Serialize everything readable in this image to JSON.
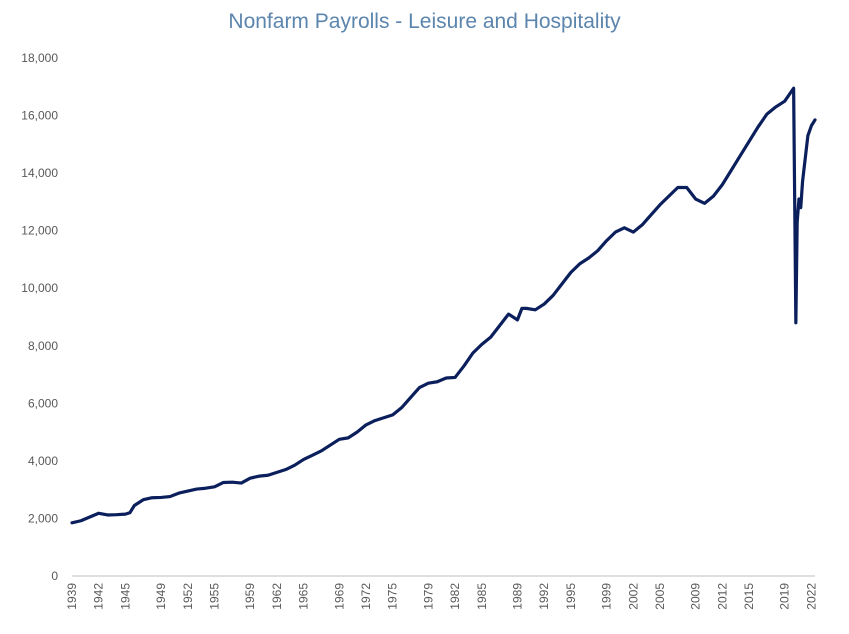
{
  "chart_data": {
    "type": "line",
    "title": "Nonfarm Payrolls - Leisure and Hospitality",
    "xlabel": "",
    "ylabel": "",
    "ylim": [
      0,
      18000
    ],
    "xlim": [
      1939,
      2022.4
    ],
    "grid": false,
    "legend": "none",
    "y_ticks": [
      0,
      2000,
      4000,
      6000,
      8000,
      10000,
      12000,
      14000,
      16000,
      18000
    ],
    "y_tick_labels": [
      "0",
      "2,000",
      "4,000",
      "6,000",
      "8,000",
      "10,000",
      "12,000",
      "14,000",
      "16,000",
      "18,000"
    ],
    "x_ticks": [
      1939,
      1942,
      1945,
      1949,
      1952,
      1955,
      1959,
      1962,
      1965,
      1969,
      1972,
      1975,
      1979,
      1982,
      1985,
      1989,
      1992,
      1995,
      1999,
      2002,
      2005,
      2009,
      2012,
      2015,
      2019,
      2022
    ],
    "x_tick_labels": [
      "1939",
      "1942",
      "1945",
      "1949",
      "1952",
      "1955",
      "1959",
      "1962",
      "1965",
      "1969",
      "1972",
      "1975",
      "1979",
      "1982",
      "1985",
      "1989",
      "1992",
      "1995",
      "1999",
      "2002",
      "2005",
      "2009",
      "2012",
      "2015",
      "2019",
      "2022"
    ],
    "series": [
      {
        "color": "#0b1f5c",
        "x": [
          1939,
          1940,
          1941,
          1942,
          1943,
          1944,
          1945,
          1945.5,
          1946,
          1947,
          1948,
          1949,
          1950,
          1951,
          1952,
          1953,
          1954,
          1955,
          1956,
          1957,
          1958,
          1959,
          1960,
          1961,
          1962,
          1963,
          1964,
          1965,
          1966,
          1967,
          1968,
          1969,
          1970,
          1971,
          1972,
          1973,
          1974,
          1975,
          1976,
          1977,
          1978,
          1979,
          1980,
          1981,
          1982,
          1983,
          1984,
          1985,
          1986,
          1987,
          1988,
          1989,
          1989.5,
          1990,
          1991,
          1992,
          1993,
          1994,
          1995,
          1996,
          1997,
          1998,
          1999,
          2000,
          2001,
          2002,
          2003,
          2004,
          2005,
          2006,
          2007,
          2008,
          2009,
          2010,
          2011,
          2012,
          2013,
          2014,
          2015,
          2016,
          2017,
          2018,
          2019,
          2020.0,
          2020.25,
          2020.4,
          2020.6,
          2020.8,
          2021.0,
          2021.3,
          2021.6,
          2022.0,
          2022.4
        ],
        "values": [
          1850,
          1920,
          2050,
          2180,
          2120,
          2130,
          2150,
          2200,
          2450,
          2650,
          2720,
          2730,
          2760,
          2880,
          2950,
          3020,
          3050,
          3100,
          3250,
          3260,
          3230,
          3400,
          3470,
          3500,
          3600,
          3700,
          3850,
          4050,
          4200,
          4350,
          4550,
          4750,
          4800,
          5000,
          5250,
          5400,
          5500,
          5600,
          5850,
          6200,
          6550,
          6700,
          6750,
          6880,
          6900,
          7300,
          7750,
          8050,
          8300,
          8700,
          9100,
          8900,
          9300,
          9300,
          9250,
          9450,
          9750,
          10150,
          10550,
          10850,
          11050,
          11300,
          11650,
          11950,
          12100,
          11950,
          12200,
          12550,
          12900,
          13200,
          13500,
          13500,
          13100,
          12950,
          13200,
          13600,
          14100,
          14600,
          15100,
          15600,
          16050,
          16300,
          16500,
          16950,
          8800,
          12300,
          13100,
          12800,
          13700,
          14500,
          15300,
          15650,
          15850
        ]
      }
    ]
  }
}
